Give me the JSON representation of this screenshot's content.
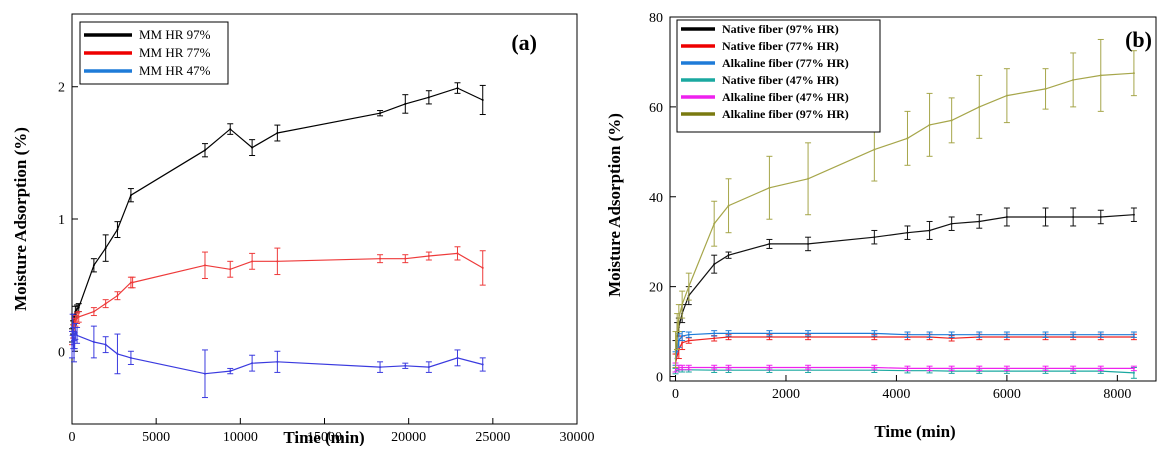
{
  "chart_data": [
    {
      "type": "line",
      "panel_label": "(a)",
      "xlabel": "Time  (min)",
      "ylabel": "Moisture Adsorption (%)",
      "xlim": [
        0,
        30000
      ],
      "ylim": [
        -0.55,
        2.55
      ],
      "xticks": [
        "0",
        "5000",
        "10000",
        "15000",
        "20000",
        "25000",
        "30000"
      ],
      "xtick_values": [
        0,
        5000,
        10000,
        15000,
        20000,
        25000,
        30000
      ],
      "yticks": [
        "0",
        "1",
        "2"
      ],
      "ytick_values": [
        0,
        1,
        2
      ],
      "legend_position": "top-left",
      "grid": false,
      "series": [
        {
          "name": "MM HR 97%",
          "color": "#000000",
          "legend_color": "#000000",
          "x": [
            0,
            60,
            120,
            200,
            300,
            400,
            1300,
            2000,
            2700,
            3500,
            7900,
            9400,
            10700,
            12200,
            18300,
            19800,
            21200,
            22900,
            24400
          ],
          "y": [
            0.12,
            0.18,
            0.24,
            0.3,
            0.32,
            0.33,
            0.65,
            0.78,
            0.92,
            1.18,
            1.52,
            1.68,
            1.54,
            1.65,
            1.8,
            1.87,
            1.92,
            1.99,
            1.9
          ],
          "err": [
            0.05,
            0.05,
            0.04,
            0.04,
            0.03,
            0.03,
            0.05,
            0.1,
            0.06,
            0.05,
            0.05,
            0.04,
            0.06,
            0.06,
            0.02,
            0.07,
            0.05,
            0.04,
            0.11
          ]
        },
        {
          "name": "MM HR 77%",
          "color": "#ee3a3a",
          "legend_color": "#ee0000",
          "x": [
            0,
            60,
            120,
            200,
            300,
            400,
            1300,
            2000,
            2700,
            3500,
            3600,
            7900,
            9400,
            10700,
            12200,
            18300,
            19800,
            21200,
            22900,
            24400
          ],
          "y": [
            0.1,
            0.15,
            0.2,
            0.23,
            0.25,
            0.26,
            0.3,
            0.36,
            0.42,
            0.52,
            0.52,
            0.65,
            0.62,
            0.68,
            0.68,
            0.7,
            0.7,
            0.72,
            0.74,
            0.63
          ],
          "err": [
            0.05,
            0.05,
            0.05,
            0.04,
            0.04,
            0.04,
            0.03,
            0.03,
            0.03,
            0.04,
            0.04,
            0.1,
            0.06,
            0.06,
            0.1,
            0.03,
            0.03,
            0.03,
            0.05,
            0.13
          ]
        },
        {
          "name": "MM HR 47%",
          "color": "#3a3adf",
          "legend_color": "#1e7bd8",
          "x": [
            0,
            40,
            80,
            120,
            160,
            200,
            300,
            1300,
            2000,
            2700,
            3500,
            7900,
            9400,
            10700,
            12200,
            18300,
            19800,
            21200,
            22900,
            24400
          ],
          "y": [
            0.05,
            0.2,
            0.1,
            0.0,
            0.08,
            0.15,
            0.12,
            0.07,
            0.05,
            -0.02,
            -0.05,
            -0.17,
            -0.15,
            -0.09,
            -0.08,
            -0.12,
            -0.11,
            -0.12,
            -0.05,
            -0.1
          ],
          "err": [
            0.1,
            0.08,
            0.08,
            0.08,
            0.06,
            0.06,
            0.06,
            0.12,
            0.06,
            0.15,
            0.05,
            0.18,
            0.02,
            0.06,
            0.08,
            0.04,
            0.02,
            0.04,
            0.06,
            0.05
          ]
        }
      ]
    },
    {
      "type": "line",
      "panel_label": "(b)",
      "xlabel": "Time  (min)",
      "ylabel": "Moisture Adsorption (%)",
      "xlim": [
        -100,
        8700
      ],
      "ylim": [
        -1,
        80
      ],
      "xticks": [
        "0",
        "2000",
        "4000",
        "6000",
        "8000"
      ],
      "xtick_values": [
        0,
        2000,
        4000,
        6000,
        8000
      ],
      "yticks": [
        "0",
        "20",
        "40",
        "60",
        "80"
      ],
      "ytick_values": [
        0,
        20,
        40,
        60,
        80
      ],
      "legend_position": "top-left",
      "grid": false,
      "series": [
        {
          "name": "Native fiber (97% HR)",
          "color": "#111111",
          "legend_color": "#000000",
          "x": [
            0,
            30,
            60,
            120,
            240,
            700,
            960,
            1700,
            2400,
            3600,
            4200,
            4600,
            5000,
            5500,
            6000,
            6700,
            7200,
            7700,
            8300
          ],
          "y": [
            5,
            9,
            11,
            14,
            18,
            25,
            27,
            29.5,
            29.5,
            31,
            32,
            32.5,
            34,
            34.5,
            35.5,
            35.5,
            35.5,
            35.5,
            36
          ],
          "err": [
            3,
            3,
            2,
            2,
            2,
            2,
            0.7,
            1,
            1.5,
            1.5,
            1.5,
            2,
            1.5,
            1.5,
            2,
            2,
            2,
            1.5,
            1.5
          ]
        },
        {
          "name": "Native fiber (77% HR)",
          "color": "#ee2222",
          "legend_color": "#ee0000",
          "x": [
            0,
            60,
            120,
            240,
            700,
            960,
            1700,
            2400,
            3600,
            4200,
            4600,
            5000,
            5500,
            6000,
            6700,
            7200,
            7700,
            8300
          ],
          "y": [
            3,
            6,
            7.5,
            8,
            8.5,
            8.8,
            8.8,
            8.8,
            8.8,
            8.8,
            8.8,
            8.5,
            8.8,
            8.8,
            8.8,
            8.8,
            8.8,
            8.8
          ],
          "err": [
            2,
            2,
            1.5,
            0.6,
            0.6,
            0.6,
            0.6,
            0.6,
            0.6,
            0.6,
            0.6,
            0.6,
            0.6,
            0.6,
            0.6,
            0.6,
            0.6,
            0.6
          ]
        },
        {
          "name": "Alkaline fiber (77% HR)",
          "color": "#1e7bd8",
          "legend_color": "#1e7bd8",
          "x": [
            0,
            60,
            120,
            240,
            700,
            960,
            1700,
            2400,
            3600,
            4200,
            4600,
            5000,
            5500,
            6000,
            6700,
            7200,
            7700,
            8300
          ],
          "y": [
            4,
            8,
            9,
            9.3,
            9.6,
            9.6,
            9.6,
            9.6,
            9.6,
            9.3,
            9.3,
            9.3,
            9.3,
            9.3,
            9.3,
            9.3,
            9.3,
            9.3
          ],
          "err": [
            1.5,
            1.5,
            1,
            0.6,
            0.6,
            0.6,
            0.6,
            0.6,
            0.6,
            0.6,
            0.6,
            0.6,
            0.6,
            0.6,
            0.6,
            0.6,
            0.6,
            0.6
          ]
        },
        {
          "name": "Native fiber (47% HR)",
          "color": "#1aa8a0",
          "legend_color": "#1aa8a0",
          "x": [
            0,
            60,
            120,
            240,
            700,
            960,
            1700,
            2400,
            3600,
            4200,
            4600,
            5000,
            5500,
            6000,
            6700,
            7200,
            7700,
            8300
          ],
          "y": [
            1.2,
            1.5,
            1.5,
            1.5,
            1.4,
            1.4,
            1.4,
            1.4,
            1.4,
            1.3,
            1.3,
            1.2,
            1.2,
            1.2,
            1.2,
            1.2,
            1.2,
            0.8
          ],
          "err": [
            0.6,
            0.5,
            0.5,
            0.5,
            0.5,
            0.5,
            0.5,
            0.5,
            0.5,
            0.5,
            0.5,
            0.5,
            0.5,
            0.5,
            0.5,
            0.5,
            0.5,
            1.2
          ]
        },
        {
          "name": "Alkaline fiber (47% HR)",
          "color": "#ee22ee",
          "legend_color": "#ee22ee",
          "x": [
            0,
            60,
            120,
            240,
            700,
            960,
            1700,
            2400,
            3600,
            4200,
            4600,
            5000,
            5500,
            6000,
            6700,
            7200,
            7700,
            8300
          ],
          "y": [
            2,
            2,
            2,
            2,
            2,
            2,
            2,
            2,
            2,
            1.8,
            1.8,
            1.8,
            1.8,
            1.8,
            1.8,
            1.8,
            1.8,
            1.8
          ],
          "err": [
            1,
            0.5,
            0.5,
            0.5,
            0.5,
            0.5,
            0.5,
            0.5,
            0.5,
            0.5,
            0.5,
            0.5,
            0.5,
            0.5,
            0.5,
            0.5,
            0.5,
            0.5
          ]
        },
        {
          "name": "Alkaline fiber (97% HR)",
          "color": "#a6a64a",
          "legend_color": "#7a7a10",
          "x": [
            0,
            30,
            60,
            120,
            240,
            700,
            960,
            1700,
            2400,
            3600,
            4200,
            4600,
            5000,
            5500,
            6000,
            6700,
            7200,
            7700,
            8300
          ],
          "y": [
            6,
            10,
            13,
            16,
            20,
            34,
            38,
            42,
            44,
            50.5,
            53,
            56,
            57,
            60,
            62.5,
            64,
            66,
            67,
            67.5
          ],
          "err": [
            4,
            4,
            3,
            3,
            3,
            5,
            6,
            7,
            8,
            7,
            6,
            7,
            5,
            7,
            6,
            4.5,
            6,
            8,
            5
          ]
        }
      ]
    }
  ]
}
